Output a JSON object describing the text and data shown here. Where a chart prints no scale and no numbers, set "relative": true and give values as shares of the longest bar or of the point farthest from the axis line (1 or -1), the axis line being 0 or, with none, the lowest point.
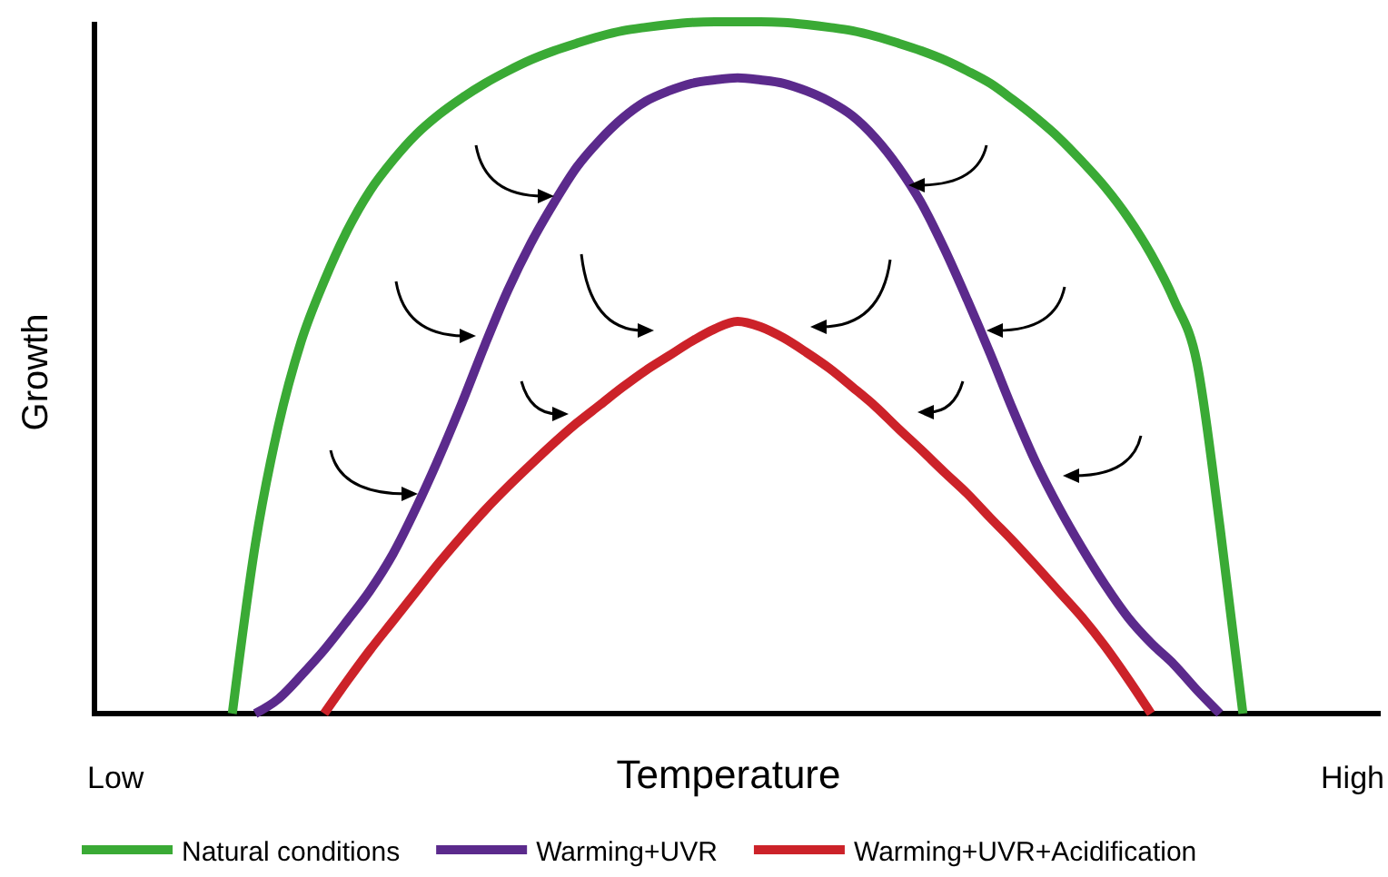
{
  "chart_data": {
    "type": "line",
    "relative": true,
    "xlabel": "Temperature",
    "ylabel": "Growth",
    "annotations": [
      "Low",
      "High"
    ],
    "legend": "bottom",
    "marker": "none",
    "line_style": "solid",
    "categories": [
      null,
      null,
      null,
      null,
      null,
      null,
      null,
      null,
      null,
      null,
      null,
      null,
      null,
      null,
      null,
      null,
      null,
      null,
      null,
      null,
      null,
      null,
      null,
      null,
      null,
      null,
      null,
      null,
      null,
      null,
      null,
      null,
      null,
      null,
      null,
      null,
      null,
      null,
      null,
      null,
      null,
      null,
      null,
      null,
      null,
      null,
      null,
      null,
      null,
      null,
      null,
      null,
      null,
      null,
      null,
      null,
      null
    ],
    "series": [
      {
        "name": "Natural conditions",
        "color": "#3aaa35",
        "values": [
          null,
          null,
          null,
          null,
          null,
          null,
          0,
          0.244,
          0.415,
          0.538,
          0.625,
          0.698,
          0.756,
          0.8,
          0.837,
          0.866,
          0.89,
          0.911,
          0.929,
          0.945,
          0.958,
          0.969,
          0.979,
          0.987,
          0.992,
          0.996,
          0.999,
          1,
          1,
          1,
          0.999,
          0.996,
          0.992,
          0.987,
          0.979,
          0.969,
          0.958,
          0.945,
          0.929,
          0.911,
          0.887,
          0.861,
          0.832,
          0.798,
          0.761,
          0.717,
          0.664,
          0.598,
          0.507,
          0.27,
          0,
          null,
          null,
          null,
          null,
          null,
          null
        ]
      },
      {
        "name": "Warming+UVR",
        "color": "#5b2a8c",
        "values": [
          null,
          null,
          null,
          null,
          null,
          null,
          null,
          0,
          0.021,
          0.055,
          0.092,
          0.134,
          0.178,
          0.231,
          0.297,
          0.37,
          0.449,
          0.533,
          0.612,
          0.68,
          0.738,
          0.79,
          0.829,
          0.861,
          0.885,
          0.9,
          0.911,
          0.916,
          0.919,
          0.916,
          0.911,
          0.9,
          0.885,
          0.864,
          0.832,
          0.79,
          0.738,
          0.672,
          0.598,
          0.52,
          0.438,
          0.362,
          0.297,
          0.239,
          0.186,
          0.139,
          0.102,
          0.071,
          0.034,
          0,
          null,
          null,
          null,
          null,
          null,
          null,
          null
        ]
      },
      {
        "name": "Warming+UVR+Acidification",
        "color": "#cc2229",
        "values": [
          null,
          null,
          null,
          null,
          null,
          null,
          null,
          null,
          null,
          null,
          0,
          0.047,
          0.092,
          0.134,
          0.176,
          0.218,
          0.257,
          0.294,
          0.328,
          0.36,
          0.391,
          0.42,
          0.446,
          0.472,
          0.496,
          0.517,
          0.538,
          0.556,
          0.567,
          0.559,
          0.543,
          0.522,
          0.499,
          0.472,
          0.444,
          0.412,
          0.381,
          0.349,
          0.318,
          0.283,
          0.249,
          0.213,
          0.176,
          0.139,
          0.097,
          0.05,
          0,
          null,
          null,
          null,
          null,
          null,
          null,
          null,
          null,
          null,
          null
        ]
      }
    ]
  }
}
